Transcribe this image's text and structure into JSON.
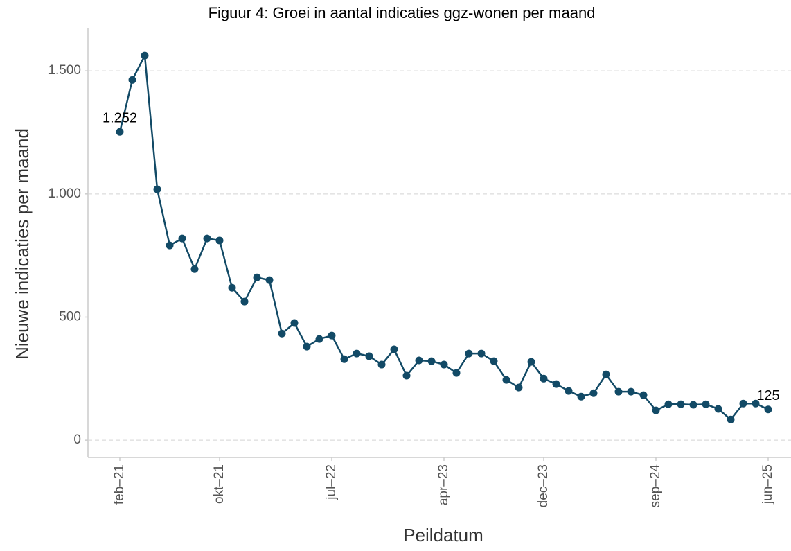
{
  "chart_data": {
    "type": "line",
    "title": "Figuur 4: Groei in aantal indicaties ggz-wonen per maand",
    "x_label": "Peildatum",
    "y_label": "Nieuwe indicaties per maand",
    "categories": [
      "feb–21",
      null,
      null,
      null,
      null,
      null,
      null,
      null,
      "okt–21",
      null,
      null,
      null,
      null,
      null,
      null,
      null,
      null,
      "jul–22",
      null,
      null,
      null,
      null,
      null,
      null,
      null,
      null,
      "apr–23",
      null,
      null,
      null,
      null,
      null,
      null,
      null,
      "dec–23",
      null,
      null,
      null,
      null,
      null,
      null,
      null,
      null,
      "sep–24",
      null,
      null,
      null,
      null,
      null,
      null,
      null,
      null,
      "jun–25"
    ],
    "series": [
      {
        "name": "Nieuwe indicaties",
        "color": "#124a66",
        "values": [
          1252,
          1463,
          1562,
          1019,
          791,
          819,
          695,
          819,
          811,
          619,
          563,
          661,
          650,
          433,
          476,
          380,
          411,
          425,
          329,
          352,
          341,
          307,
          369,
          262,
          324,
          321,
          307,
          273,
          352,
          352,
          321,
          245,
          214,
          318,
          250,
          228,
          200,
          177,
          191,
          267,
          197,
          197,
          183,
          121,
          146,
          146,
          144,
          146,
          127,
          84,
          149,
          149,
          125
        ],
        "value_labels": [
          "1.252",
          null,
          null,
          null,
          null,
          null,
          null,
          null,
          null,
          null,
          null,
          null,
          null,
          null,
          null,
          null,
          null,
          null,
          null,
          null,
          null,
          null,
          null,
          null,
          null,
          null,
          null,
          null,
          null,
          null,
          null,
          null,
          null,
          null,
          null,
          null,
          null,
          null,
          null,
          null,
          null,
          null,
          null,
          null,
          null,
          null,
          null,
          null,
          null,
          null,
          null,
          null,
          "125"
        ]
      }
    ],
    "ylim": [
      -70,
      1675
    ],
    "yticks": [
      0,
      500,
      {
        "value": 1000,
        "label": "1.000"
      },
      {
        "value": 1500,
        "label": "1.500"
      }
    ],
    "grid": true
  }
}
